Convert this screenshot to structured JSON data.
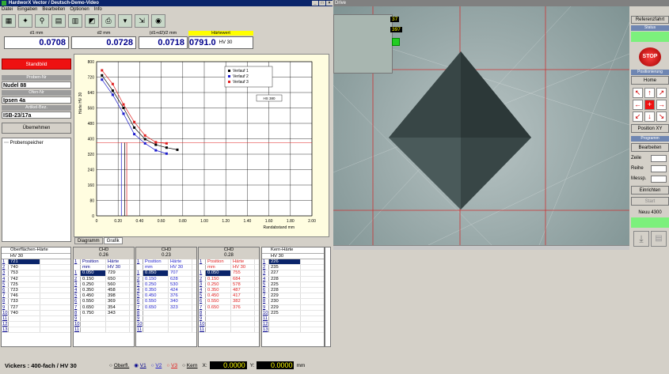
{
  "left_window": {
    "title": "HardworX Vector / Deutsch-Demo-Video",
    "menu": [
      "Datei",
      "Eingaben",
      "Bearbeiten",
      "Optionen",
      "Info"
    ]
  },
  "right_window": {
    "title": "Drive"
  },
  "measure": {
    "d1_label": "d1 mm",
    "d1": "0.0708",
    "d2_label": "d2 mm",
    "d2": "0.0728",
    "avg_label": "(d1+d2)/2  mm",
    "avg": "0.0718",
    "hw_label": "Härtewert",
    "hw": "0791.0",
    "hw_unit": "HV 30"
  },
  "left_panel": {
    "standbild": "Standbild",
    "proben_nr_label": "Proben-Nr",
    "proben_nr": "Nudel 88",
    "ofen_nr_label": "Ofen-Nr",
    "ofen_nr": "Ipsen 4a",
    "artikel_label": "Artikel-Bez.",
    "artikel": "ISB-23/17a",
    "uebernehmen": "Übernehmen",
    "probenspeicher": "Probenspeicher"
  },
  "chart_data": {
    "type": "line",
    "ylabel": "Härte HV 30",
    "xlabel": "Randabstand  mm",
    "xlim": [
      0,
      2.0
    ],
    "ylim": [
      0,
      800
    ],
    "xticks": [
      "0",
      "0.20",
      "0.40",
      "0.60",
      "0.80",
      "1.00",
      "1.20",
      "1.40",
      "1.60",
      "1.80",
      "2.00"
    ],
    "yticks": [
      "0",
      "80",
      "160",
      "240",
      "320",
      "400",
      "480",
      "560",
      "640",
      "720",
      "800"
    ],
    "legend": [
      "Verlauf 1",
      "Verlauf 2",
      "Verlauf 3"
    ],
    "grid": true,
    "legend_position": "top-right",
    "hs_label": "HS 380",
    "series": [
      {
        "name": "Verlauf 1",
        "color": "#000000",
        "x": [
          0.05,
          0.15,
          0.25,
          0.35,
          0.45,
          0.55,
          0.65,
          0.75
        ],
        "y": [
          729,
          650,
          560,
          458,
          398,
          369,
          354,
          343
        ]
      },
      {
        "name": "Verlauf 2",
        "color": "#1c1ccc",
        "x": [
          0.05,
          0.15,
          0.25,
          0.35,
          0.45,
          0.55,
          0.65
        ],
        "y": [
          707,
          628,
          530,
          424,
          376,
          340,
          323
        ]
      },
      {
        "name": "Verlauf 3",
        "color": "#e02020",
        "x": [
          0.05,
          0.15,
          0.25,
          0.35,
          0.45,
          0.55,
          0.65
        ],
        "y": [
          755,
          684,
          578,
          487,
          417,
          382,
          376
        ]
      }
    ],
    "chd_lines": [
      0.26,
      0.23,
      0.28
    ],
    "hv_line": 380
  },
  "tabs": {
    "diagramm": "Diagramm",
    "grafik": "Grafik"
  },
  "oberflaeche": {
    "header": "Oberflächen-Härte",
    "sub": "HV 30",
    "values": [
      "721",
      "740",
      "753",
      "742",
      "725",
      "723",
      "746",
      "733",
      "727",
      "740",
      "",
      "",
      ""
    ]
  },
  "chd": [
    {
      "title": "CHD",
      "value": "0.26",
      "h1": "Position",
      "h2": "Härte",
      "u1": "mm",
      "u2": "HV 30",
      "rows": [
        [
          "0.050",
          "729"
        ],
        [
          "0.150",
          "650"
        ],
        [
          "0.250",
          "560"
        ],
        [
          "0.350",
          "458"
        ],
        [
          "0.450",
          "398"
        ],
        [
          "0.550",
          "369"
        ],
        [
          "0.650",
          "354"
        ],
        [
          "0.750",
          "343"
        ],
        [
          "",
          ""
        ],
        [
          "",
          ""
        ],
        [
          "",
          ""
        ]
      ]
    },
    {
      "title": "CHD",
      "value": "0.23",
      "h1": "Position",
      "h2": "Härte",
      "u1": "mm",
      "u2": "HV 30",
      "rows": [
        [
          "0.050",
          "707"
        ],
        [
          "0.150",
          "628"
        ],
        [
          "0.250",
          "530"
        ],
        [
          "0.350",
          "424"
        ],
        [
          "0.450",
          "376"
        ],
        [
          "0.550",
          "340"
        ],
        [
          "0.650",
          "323"
        ],
        [
          "",
          ""
        ],
        [
          "",
          ""
        ],
        [
          "",
          ""
        ],
        [
          "",
          ""
        ]
      ]
    },
    {
      "title": "CHD",
      "value": "0.28",
      "h1": "Position",
      "h2": "Härte",
      "u1": "mm",
      "u2": "HV 30",
      "rows": [
        [
          "0.050",
          "755"
        ],
        [
          "0.150",
          "684"
        ],
        [
          "0.250",
          "578"
        ],
        [
          "0.350",
          "487"
        ],
        [
          "0.450",
          "417"
        ],
        [
          "0.550",
          "382"
        ],
        [
          "0.650",
          "376"
        ],
        [
          "",
          ""
        ],
        [
          "",
          ""
        ],
        [
          "",
          ""
        ],
        [
          "",
          ""
        ]
      ]
    }
  ],
  "kern": {
    "header": "Kern-Härte",
    "sub": "HV 30",
    "values": [
      "226",
      "235",
      "227",
      "228",
      "225",
      "228",
      "229",
      "230",
      "229",
      "225",
      "",
      "",
      ""
    ]
  },
  "status": {
    "text": "Vickers : 400-fach / HV 30",
    "radios": [
      "Oberfl.",
      "V1",
      "V2",
      "V3",
      "Kern"
    ],
    "x_label": "X:",
    "x": "0.0000",
    "y_label": "Y:",
    "y": "0.0000",
    "unit": "mm"
  },
  "camera": {
    "val1": "37",
    "val2": "397"
  },
  "right_panel": {
    "referenzfahrt": "Referenzfahrt",
    "status": "Status",
    "stop": "STOP",
    "positionierung": "Positionierung",
    "home": "Home",
    "position_xy": "Position XY",
    "programm": "Programm",
    "bearbeiten": "Bearbeiten",
    "zeile": "Zeile",
    "reihe": "Reihe",
    "messp": "Messp.",
    "einrichten": "Einrichten",
    "start": "Start",
    "neuu": "Neuu 4300"
  }
}
